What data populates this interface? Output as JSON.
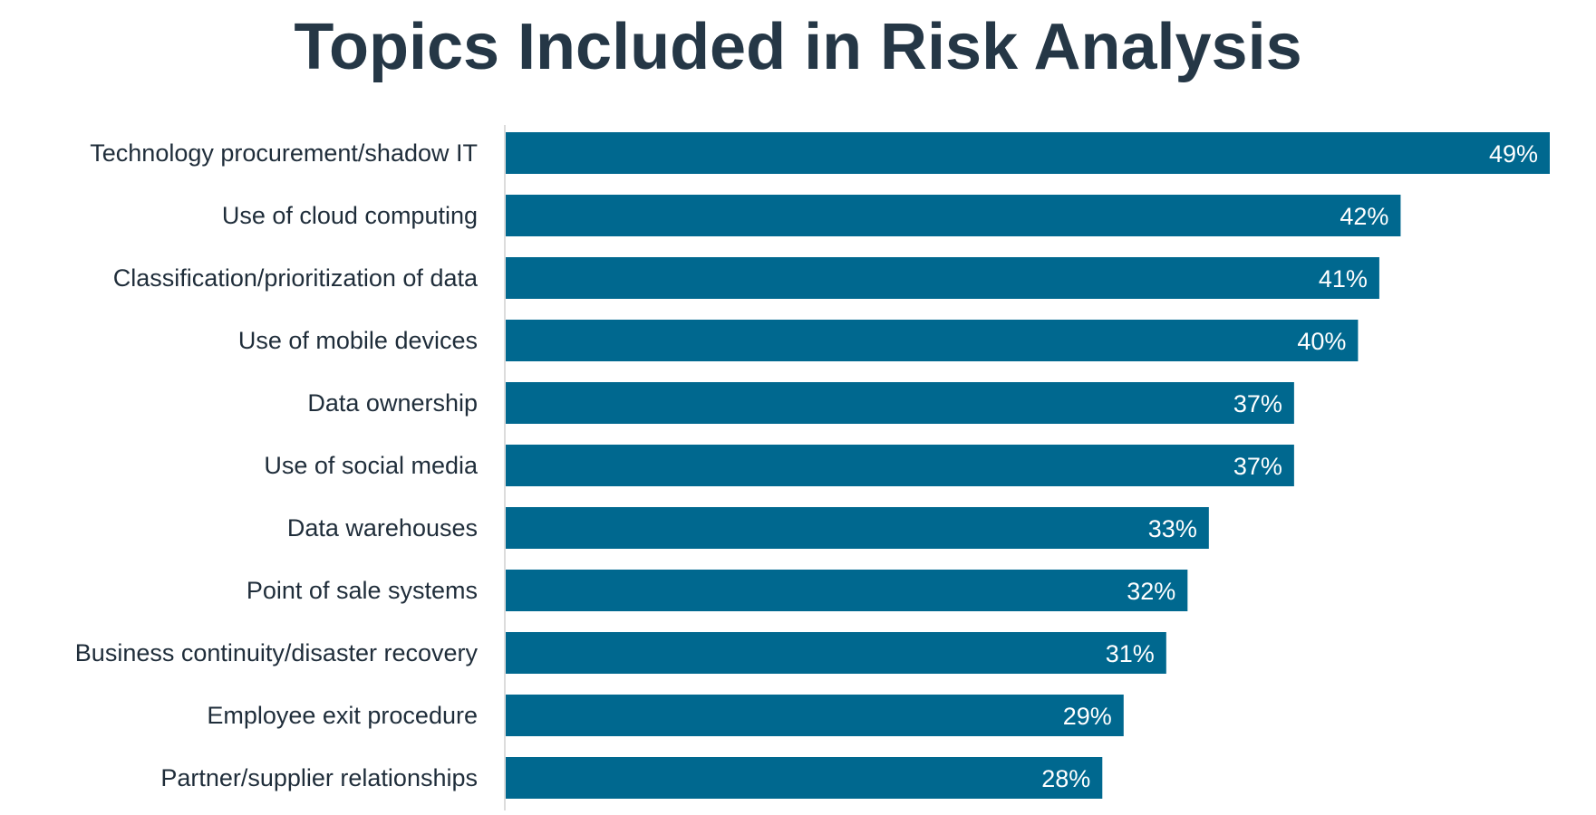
{
  "chart_data": {
    "type": "bar",
    "orientation": "horizontal",
    "title": "Topics Included in Risk Analysis",
    "xlabel": "",
    "ylabel": "",
    "categories": [
      "Technology procurement/shadow IT",
      "Use of cloud computing",
      "Classification/prioritization of data",
      "Use of mobile devices",
      "Data ownership",
      "Use of social media",
      "Data warehouses",
      "Point of sale systems",
      "Business continuity/disaster recovery",
      "Employee exit procedure",
      "Partner/supplier relationships"
    ],
    "values": [
      49,
      42,
      41,
      40,
      37,
      37,
      33,
      32,
      31,
      29,
      28
    ],
    "value_labels": [
      "49%",
      "42%",
      "41%",
      "40%",
      "37%",
      "37%",
      "33%",
      "32%",
      "31%",
      "29%",
      "28%"
    ],
    "unit": "%",
    "xlim": [
      0,
      49
    ],
    "grid": false,
    "legend": "none",
    "colors": {
      "bar": "#00688f",
      "title": "#253746",
      "axis": "#d0d0d0",
      "category_text": "#1f2d3a",
      "value_text": "#ffffff"
    }
  }
}
